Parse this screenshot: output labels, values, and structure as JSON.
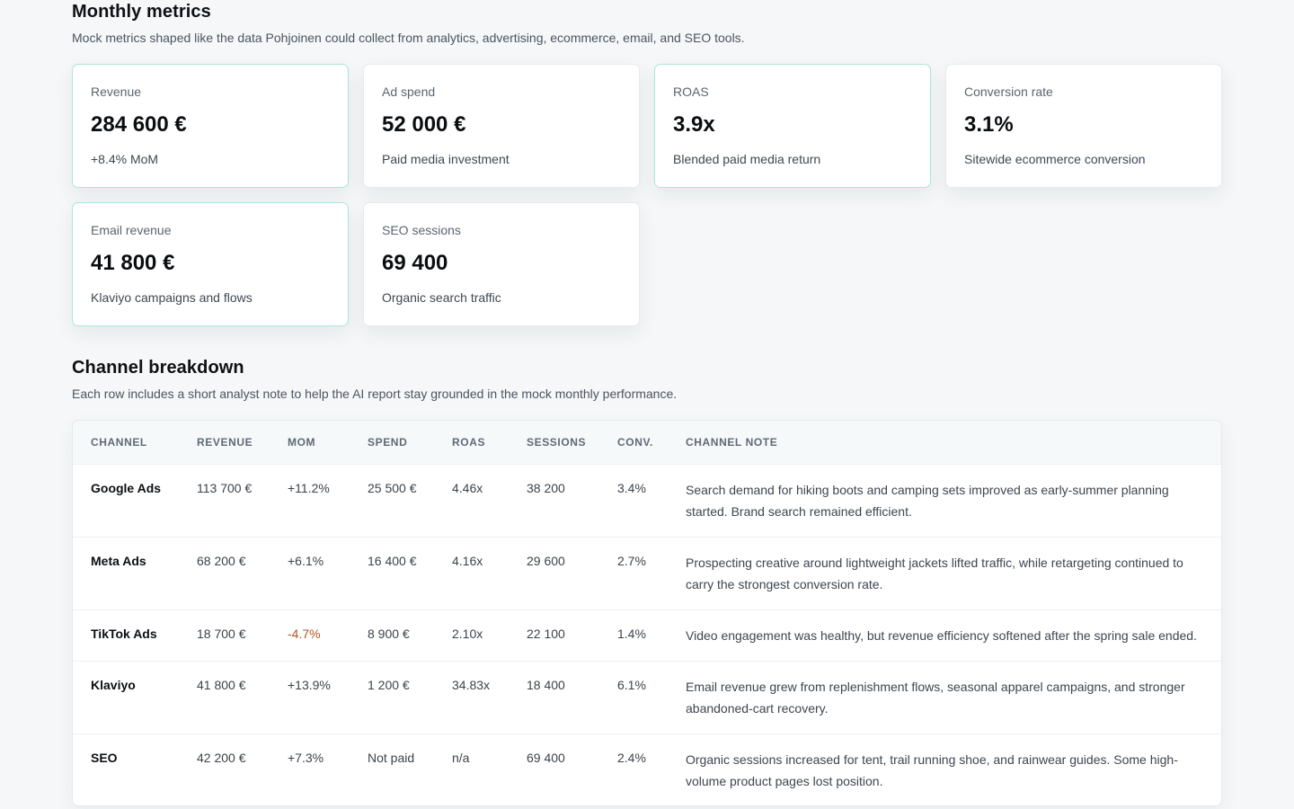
{
  "metrics": {
    "title": "Monthly metrics",
    "subtitle": "Mock metrics shaped like the data Pohjoinen could collect from analytics, advertising, ecommerce, email, and SEO tools.",
    "cards": [
      {
        "label": "Revenue",
        "value": "284 600 €",
        "note": "+8.4% MoM",
        "accent": true
      },
      {
        "label": "Ad spend",
        "value": "52 000 €",
        "note": "Paid media investment",
        "accent": false
      },
      {
        "label": "ROAS",
        "value": "3.9x",
        "note": "Blended paid media return",
        "accent": true
      },
      {
        "label": "Conversion rate",
        "value": "3.1%",
        "note": "Sitewide ecommerce conversion",
        "accent": false
      },
      {
        "label": "Email revenue",
        "value": "41 800 €",
        "note": "Klaviyo campaigns and flows",
        "accent": true
      },
      {
        "label": "SEO sessions",
        "value": "69 400",
        "note": "Organic search traffic",
        "accent": false
      }
    ]
  },
  "channels": {
    "title": "Channel breakdown",
    "subtitle": "Each row includes a short analyst note to help the AI report stay grounded in the mock monthly performance.",
    "headers": [
      "Channel",
      "Revenue",
      "MoM",
      "Spend",
      "ROAS",
      "Sessions",
      "Conv.",
      "Channel note"
    ],
    "rows": [
      {
        "channel": "Google Ads",
        "revenue": "113 700 €",
        "mom": "+11.2%",
        "spend": "25 500 €",
        "roas": "4.46x",
        "sessions": "38 200",
        "conv": "3.4%",
        "note": "Search demand for hiking boots and camping sets improved as early-summer planning started. Brand search remained efficient."
      },
      {
        "channel": "Meta Ads",
        "revenue": "68 200 €",
        "mom": "+6.1%",
        "spend": "16 400 €",
        "roas": "4.16x",
        "sessions": "29 600",
        "conv": "2.7%",
        "note": "Prospecting creative around lightweight jackets lifted traffic, while retargeting continued to carry the strongest conversion rate."
      },
      {
        "channel": "TikTok Ads",
        "revenue": "18 700 €",
        "mom": "-4.7%",
        "spend": "8 900 €",
        "roas": "2.10x",
        "sessions": "22 100",
        "conv": "1.4%",
        "note": "Video engagement was healthy, but revenue efficiency softened after the spring sale ended."
      },
      {
        "channel": "Klaviyo",
        "revenue": "41 800 €",
        "mom": "+13.9%",
        "spend": "1 200 €",
        "roas": "34.83x",
        "sessions": "18 400",
        "conv": "6.1%",
        "note": "Email revenue grew from replenishment flows, seasonal apparel campaigns, and stronger abandoned-cart recovery."
      },
      {
        "channel": "SEO",
        "revenue": "42 200 €",
        "mom": "+7.3%",
        "spend": "Not paid",
        "roas": "n/a",
        "sessions": "69 400",
        "conv": "2.4%",
        "note": "Organic sessions increased for tent, trail running shoe, and rainwear guides. Some high-volume product pages lost position."
      }
    ]
  },
  "colors": {
    "accent_border": "#a9e6dc",
    "negative": "#b4541f",
    "page_bg": "#f5f7f8"
  }
}
